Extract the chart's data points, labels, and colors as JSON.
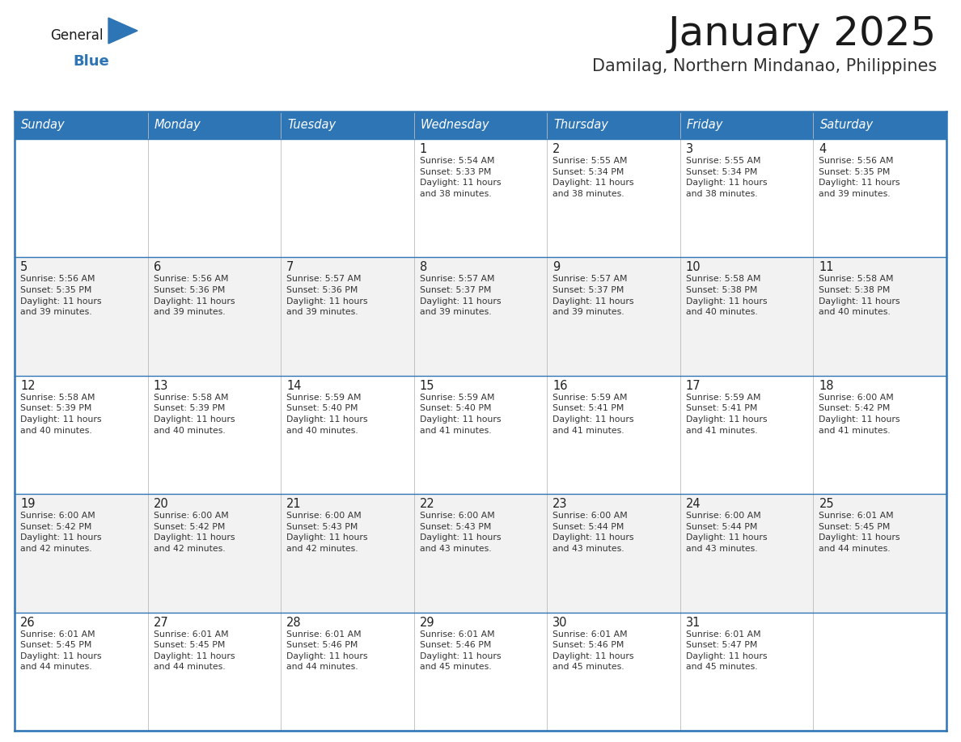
{
  "title": "January 2025",
  "subtitle": "Damilag, Northern Mindanao, Philippines",
  "days_of_week": [
    "Sunday",
    "Monday",
    "Tuesday",
    "Wednesday",
    "Thursday",
    "Friday",
    "Saturday"
  ],
  "header_bg": "#2E75B6",
  "header_text": "#FFFFFF",
  "cell_bg_light": "#F2F2F2",
  "cell_bg_white": "#FFFFFF",
  "border_color_dark": "#2E75B6",
  "border_color_light": "#BBBBBB",
  "title_color": "#1a1a1a",
  "subtitle_color": "#333333",
  "text_color": "#333333",
  "date_num_color": "#222222",
  "logo_general_color": "#1a1a1a",
  "logo_blue_color": "#2E75B6",
  "logo_triangle_color": "#2E75B6",
  "week_rows": [
    {
      "days": [
        {
          "date": "",
          "info": ""
        },
        {
          "date": "",
          "info": ""
        },
        {
          "date": "",
          "info": ""
        },
        {
          "date": "1",
          "info": "Sunrise: 5:54 AM\nSunset: 5:33 PM\nDaylight: 11 hours\nand 38 minutes."
        },
        {
          "date": "2",
          "info": "Sunrise: 5:55 AM\nSunset: 5:34 PM\nDaylight: 11 hours\nand 38 minutes."
        },
        {
          "date": "3",
          "info": "Sunrise: 5:55 AM\nSunset: 5:34 PM\nDaylight: 11 hours\nand 38 minutes."
        },
        {
          "date": "4",
          "info": "Sunrise: 5:56 AM\nSunset: 5:35 PM\nDaylight: 11 hours\nand 39 minutes."
        }
      ]
    },
    {
      "days": [
        {
          "date": "5",
          "info": "Sunrise: 5:56 AM\nSunset: 5:35 PM\nDaylight: 11 hours\nand 39 minutes."
        },
        {
          "date": "6",
          "info": "Sunrise: 5:56 AM\nSunset: 5:36 PM\nDaylight: 11 hours\nand 39 minutes."
        },
        {
          "date": "7",
          "info": "Sunrise: 5:57 AM\nSunset: 5:36 PM\nDaylight: 11 hours\nand 39 minutes."
        },
        {
          "date": "8",
          "info": "Sunrise: 5:57 AM\nSunset: 5:37 PM\nDaylight: 11 hours\nand 39 minutes."
        },
        {
          "date": "9",
          "info": "Sunrise: 5:57 AM\nSunset: 5:37 PM\nDaylight: 11 hours\nand 39 minutes."
        },
        {
          "date": "10",
          "info": "Sunrise: 5:58 AM\nSunset: 5:38 PM\nDaylight: 11 hours\nand 40 minutes."
        },
        {
          "date": "11",
          "info": "Sunrise: 5:58 AM\nSunset: 5:38 PM\nDaylight: 11 hours\nand 40 minutes."
        }
      ]
    },
    {
      "days": [
        {
          "date": "12",
          "info": "Sunrise: 5:58 AM\nSunset: 5:39 PM\nDaylight: 11 hours\nand 40 minutes."
        },
        {
          "date": "13",
          "info": "Sunrise: 5:58 AM\nSunset: 5:39 PM\nDaylight: 11 hours\nand 40 minutes."
        },
        {
          "date": "14",
          "info": "Sunrise: 5:59 AM\nSunset: 5:40 PM\nDaylight: 11 hours\nand 40 minutes."
        },
        {
          "date": "15",
          "info": "Sunrise: 5:59 AM\nSunset: 5:40 PM\nDaylight: 11 hours\nand 41 minutes."
        },
        {
          "date": "16",
          "info": "Sunrise: 5:59 AM\nSunset: 5:41 PM\nDaylight: 11 hours\nand 41 minutes."
        },
        {
          "date": "17",
          "info": "Sunrise: 5:59 AM\nSunset: 5:41 PM\nDaylight: 11 hours\nand 41 minutes."
        },
        {
          "date": "18",
          "info": "Sunrise: 6:00 AM\nSunset: 5:42 PM\nDaylight: 11 hours\nand 41 minutes."
        }
      ]
    },
    {
      "days": [
        {
          "date": "19",
          "info": "Sunrise: 6:00 AM\nSunset: 5:42 PM\nDaylight: 11 hours\nand 42 minutes."
        },
        {
          "date": "20",
          "info": "Sunrise: 6:00 AM\nSunset: 5:42 PM\nDaylight: 11 hours\nand 42 minutes."
        },
        {
          "date": "21",
          "info": "Sunrise: 6:00 AM\nSunset: 5:43 PM\nDaylight: 11 hours\nand 42 minutes."
        },
        {
          "date": "22",
          "info": "Sunrise: 6:00 AM\nSunset: 5:43 PM\nDaylight: 11 hours\nand 43 minutes."
        },
        {
          "date": "23",
          "info": "Sunrise: 6:00 AM\nSunset: 5:44 PM\nDaylight: 11 hours\nand 43 minutes."
        },
        {
          "date": "24",
          "info": "Sunrise: 6:00 AM\nSunset: 5:44 PM\nDaylight: 11 hours\nand 43 minutes."
        },
        {
          "date": "25",
          "info": "Sunrise: 6:01 AM\nSunset: 5:45 PM\nDaylight: 11 hours\nand 44 minutes."
        }
      ]
    },
    {
      "days": [
        {
          "date": "26",
          "info": "Sunrise: 6:01 AM\nSunset: 5:45 PM\nDaylight: 11 hours\nand 44 minutes."
        },
        {
          "date": "27",
          "info": "Sunrise: 6:01 AM\nSunset: 5:45 PM\nDaylight: 11 hours\nand 44 minutes."
        },
        {
          "date": "28",
          "info": "Sunrise: 6:01 AM\nSunset: 5:46 PM\nDaylight: 11 hours\nand 44 minutes."
        },
        {
          "date": "29",
          "info": "Sunrise: 6:01 AM\nSunset: 5:46 PM\nDaylight: 11 hours\nand 45 minutes."
        },
        {
          "date": "30",
          "info": "Sunrise: 6:01 AM\nSunset: 5:46 PM\nDaylight: 11 hours\nand 45 minutes."
        },
        {
          "date": "31",
          "info": "Sunrise: 6:01 AM\nSunset: 5:47 PM\nDaylight: 11 hours\nand 45 minutes."
        },
        {
          "date": "",
          "info": ""
        }
      ]
    }
  ]
}
